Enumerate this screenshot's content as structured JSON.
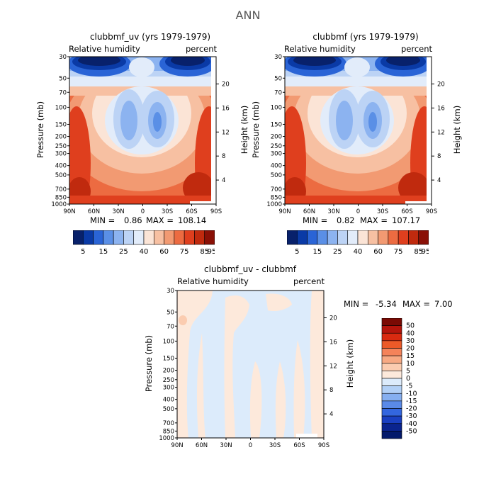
{
  "figure_title": "ANN",
  "chart_data": [
    {
      "type": "heatmap",
      "title": "clubbmf_uv (yrs 1979-1979)",
      "subtitle_left": "Relative humidity",
      "subtitle_right": "percent",
      "ylabel": "Pressure (mb)",
      "ylabel_right": "Height (km)",
      "x_ticks": [
        "90N",
        "60N",
        "30N",
        "0",
        "30S",
        "60S",
        "90S"
      ],
      "y_ticks": [
        "30",
        "50",
        "70",
        "100",
        "150",
        "200",
        "250",
        "300",
        "400",
        "500",
        "700",
        "850",
        "1000"
      ],
      "y_ticks_right": [
        "20",
        "16",
        "12",
        "8",
        "4"
      ],
      "stats": {
        "min_label": "MIN =",
        "min": "0.86",
        "max_label": "MAX =",
        "max": "108.14"
      },
      "colorbar_levels": [
        "5",
        "15",
        "25",
        "40",
        "60",
        "75",
        "85",
        "95"
      ]
    },
    {
      "type": "heatmap",
      "title": "clubbmf (yrs 1979-1979)",
      "subtitle_left": "Relative humidity",
      "subtitle_right": "percent",
      "ylabel": "Pressure (mb)",
      "ylabel_right": "Height (km)",
      "x_ticks": [
        "90N",
        "60N",
        "30N",
        "0",
        "30S",
        "60S",
        "90S"
      ],
      "y_ticks": [
        "30",
        "50",
        "70",
        "100",
        "150",
        "200",
        "250",
        "300",
        "400",
        "500",
        "700",
        "850",
        "1000"
      ],
      "y_ticks_right": [
        "20",
        "16",
        "12",
        "8",
        "4"
      ],
      "stats": {
        "min_label": "MIN =",
        "min": "0.82",
        "max_label": "MAX =",
        "max": "107.17"
      },
      "colorbar_levels": [
        "5",
        "15",
        "25",
        "40",
        "60",
        "75",
        "85",
        "95"
      ]
    },
    {
      "type": "heatmap",
      "title": "clubbmf_uv - clubbmf",
      "subtitle_left": "Relative humidity",
      "subtitle_right": "percent",
      "ylabel": "Pressure (mb)",
      "ylabel_right": "Height (km)",
      "x_ticks": [
        "90N",
        "60N",
        "30N",
        "0",
        "30S",
        "60S",
        "90S"
      ],
      "y_ticks": [
        "30",
        "50",
        "70",
        "100",
        "150",
        "200",
        "250",
        "300",
        "400",
        "500",
        "700",
        "850",
        "1000"
      ],
      "y_ticks_right": [
        "20",
        "16",
        "12",
        "8",
        "4"
      ],
      "stats": {
        "min_label": "MIN =",
        "min": "-5.34",
        "max_label": "MAX =",
        "max": "7.00"
      },
      "colorbar_levels": [
        "50",
        "40",
        "30",
        "20",
        "15",
        "10",
        "5",
        "0",
        "-5",
        "-10",
        "-15",
        "-20",
        "-30",
        "-40",
        "-50"
      ]
    }
  ],
  "colors": {
    "abs_scale": [
      "#08216b",
      "#0a3aa6",
      "#2a64d6",
      "#5a8fe6",
      "#8cb3f0",
      "#bcd3f5",
      "#e2ecfa",
      "#fbe4d6",
      "#f7c0a2",
      "#f29a72",
      "#ec6b41",
      "#df3f1e",
      "#c02a0e",
      "#8a1006"
    ],
    "diff_scale": [
      "#7a0a04",
      "#b5150c",
      "#d92a10",
      "#ec5a28",
      "#f4835a",
      "#f7a983",
      "#fbccb0",
      "#fde9db",
      "#dcebfb",
      "#b2d0f6",
      "#86aff0",
      "#5a8ae8",
      "#3366df",
      "#1a40c2",
      "#0a248f",
      "#041a6b"
    ]
  }
}
